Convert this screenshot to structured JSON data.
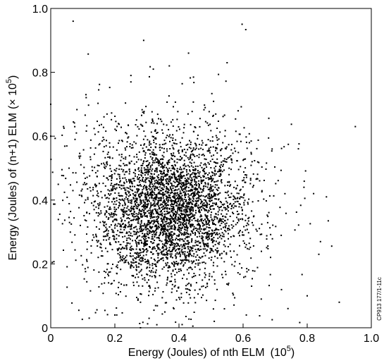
{
  "chart_data": {
    "type": "scatter",
    "title": "",
    "xlabel": "Energy (Joules) of nth ELM",
    "xlabel_unit_base": "10",
    "xlabel_unit_exp": "5",
    "ylabel": "Energy (Joules) of (n+1) ELM",
    "ylabel_unit_base": "× 10",
    "ylabel_unit_exp": "5",
    "xlim": [
      0,
      1.0
    ],
    "ylim": [
      0,
      1.0
    ],
    "x_ticks": [
      "0",
      "0.2",
      "0.4",
      "0.6",
      "0.8",
      "1.0"
    ],
    "y_ticks": [
      "0",
      "0.2",
      "0.4",
      "0.6",
      "0.8",
      "1.0"
    ],
    "grid": false,
    "legend": "none",
    "marker_color": "#000000",
    "side_code": "CP913 177/1-11c",
    "distribution": {
      "center_x": 0.37,
      "center_y": 0.37,
      "std_x": 0.11,
      "std_y": 0.11,
      "approx_point_count": 4000
    },
    "outliers": [
      {
        "x": 0.07,
        "y": 0.96
      },
      {
        "x": 0.29,
        "y": 0.9
      },
      {
        "x": 0.43,
        "y": 0.86
      },
      {
        "x": 0.55,
        "y": 0.83
      },
      {
        "x": 0.32,
        "y": 0.81
      },
      {
        "x": 0.37,
        "y": 0.82
      },
      {
        "x": 0.25,
        "y": 0.79
      },
      {
        "x": 0.25,
        "y": 0.77
      },
      {
        "x": 0.11,
        "y": 0.73
      },
      {
        "x": 0.95,
        "y": 0.63
      },
      {
        "x": 0.86,
        "y": 0.41
      },
      {
        "x": 0.8,
        "y": 0.1
      },
      {
        "x": 0.9,
        "y": 0.08
      },
      {
        "x": 0.74,
        "y": 0.06
      },
      {
        "x": 0.79,
        "y": 0.44
      },
      {
        "x": 0.82,
        "y": 0.42
      },
      {
        "x": 0.08,
        "y": 0.61
      },
      {
        "x": 0.04,
        "y": 0.63
      },
      {
        "x": 0.0,
        "y": 0.6
      },
      {
        "x": 0.0,
        "y": 0.7
      },
      {
        "x": 0.2,
        "y": 0.04
      },
      {
        "x": 0.61,
        "y": 0.04
      },
      {
        "x": 0.51,
        "y": 0.02
      },
      {
        "x": 0.12,
        "y": 0.03
      },
      {
        "x": 0.41,
        "y": 0.01
      },
      {
        "x": 0.28,
        "y": 0.0
      }
    ]
  }
}
